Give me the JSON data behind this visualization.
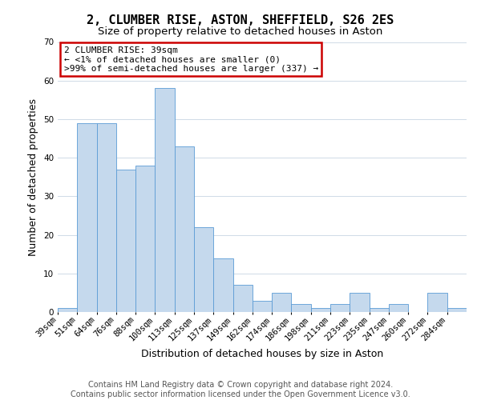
{
  "title": "2, CLUMBER RISE, ASTON, SHEFFIELD, S26 2ES",
  "subtitle": "Size of property relative to detached houses in Aston",
  "xlabel": "Distribution of detached houses by size in Aston",
  "ylabel": "Number of detached properties",
  "footer_line1": "Contains HM Land Registry data © Crown copyright and database right 2024.",
  "footer_line2": "Contains public sector information licensed under the Open Government Licence v3.0.",
  "bin_labels": [
    "39sqm",
    "51sqm",
    "64sqm",
    "76sqm",
    "88sqm",
    "100sqm",
    "113sqm",
    "125sqm",
    "137sqm",
    "149sqm",
    "162sqm",
    "174sqm",
    "186sqm",
    "198sqm",
    "211sqm",
    "223sqm",
    "235sqm",
    "247sqm",
    "260sqm",
    "272sqm",
    "284sqm"
  ],
  "bar_values": [
    1,
    49,
    49,
    37,
    38,
    58,
    43,
    22,
    14,
    7,
    3,
    5,
    2,
    1,
    2,
    5,
    1,
    2,
    0,
    5,
    1
  ],
  "bar_color": "#c5d9ed",
  "bar_edge_color": "#5b9bd5",
  "bar_width": 1.0,
  "ylim": [
    0,
    70
  ],
  "yticks": [
    0,
    10,
    20,
    30,
    40,
    50,
    60,
    70
  ],
  "annotation_text": "2 CLUMBER RISE: 39sqm\n← <1% of detached houses are smaller (0)\n>99% of semi-detached houses are larger (337) →",
  "annotation_box_color": "#ffffff",
  "annotation_box_edge_color": "#cc0000",
  "background_color": "#ffffff",
  "grid_color": "#c8d4e3",
  "title_fontsize": 11,
  "subtitle_fontsize": 9.5,
  "axis_label_fontsize": 9,
  "tick_fontsize": 7.5,
  "annotation_fontsize": 8,
  "footer_fontsize": 7
}
